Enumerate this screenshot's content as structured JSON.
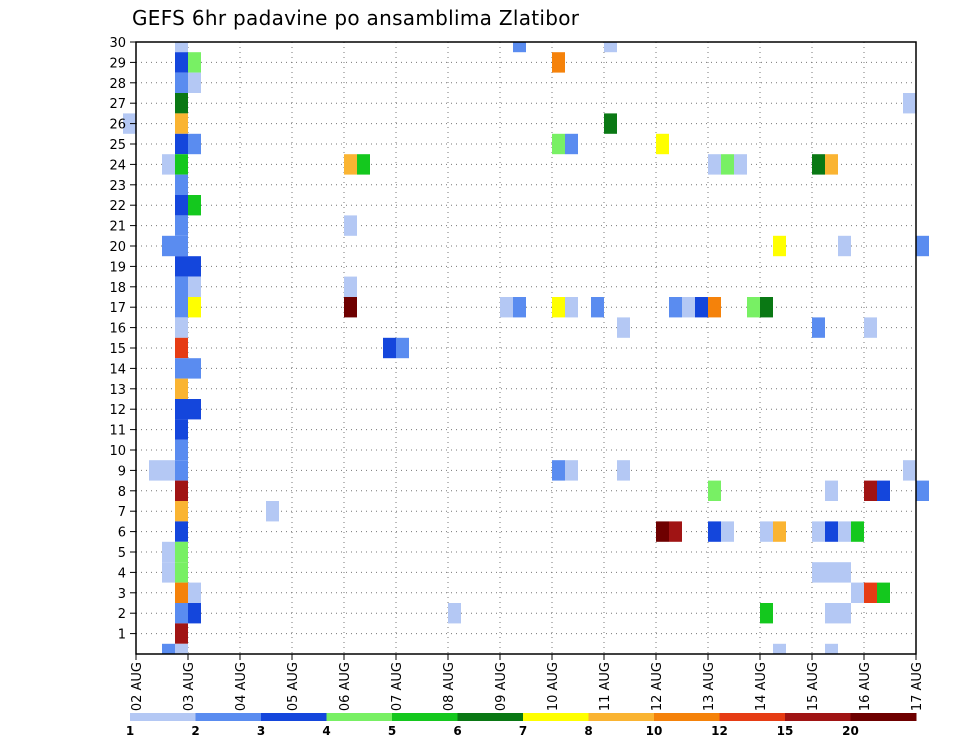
{
  "chart_data": {
    "type": "heatmap",
    "title": "GEFS 6hr padavine po ansamblima Zlatibor",
    "xlabel": "",
    "ylabel": "",
    "x_tick_labels": [
      "02 AUG",
      "03 AUG",
      "04 AUG",
      "05 AUG",
      "06 AUG",
      "07 AUG",
      "08 AUG",
      "09 AUG",
      "10 AUG",
      "11 AUG",
      "12 AUG",
      "13 AUG",
      "14 AUG",
      "15 AUG",
      "16 AUG",
      "17 AUG"
    ],
    "y_tick_labels": [
      "1",
      "2",
      "3",
      "4",
      "5",
      "6",
      "7",
      "8",
      "9",
      "10",
      "11",
      "12",
      "13",
      "14",
      "15",
      "16",
      "17",
      "18",
      "19",
      "20",
      "21",
      "22",
      "23",
      "24",
      "25",
      "26",
      "27",
      "28",
      "29",
      "30"
    ],
    "y_range": [
      0,
      30
    ],
    "x_range_days": [
      2,
      17
    ],
    "grid": true,
    "colorbar": {
      "labels": [
        "1",
        "2",
        "3",
        "4",
        "5",
        "6",
        "7",
        "8",
        "10",
        "12",
        "15",
        "20"
      ],
      "colors": [
        "#b4c8f4",
        "#5a8cf0",
        "#1446dc",
        "#78f064",
        "#14c81e",
        "#0a7814",
        "#ffff00",
        "#fab432",
        "#f5820a",
        "#e63c14",
        "#a01414",
        "#6e0000"
      ]
    },
    "cells": [
      {
        "member": 30,
        "t": 2.75,
        "level": 1
      },
      {
        "member": 30,
        "t": 9.25,
        "level": 2
      },
      {
        "member": 30,
        "t": 11,
        "level": 1
      },
      {
        "member": 29,
        "t": 2.75,
        "level": 3
      },
      {
        "member": 29,
        "t": 3,
        "level": 4
      },
      {
        "member": 29,
        "t": 10,
        "level": 10
      },
      {
        "member": 28,
        "t": 2.75,
        "level": 2
      },
      {
        "member": 28,
        "t": 3,
        "level": 1
      },
      {
        "member": 27,
        "t": 2.75,
        "level": 6
      },
      {
        "member": 27,
        "t": 16.75,
        "level": 1
      },
      {
        "member": 26,
        "t": 1.75,
        "level": 1
      },
      {
        "member": 26,
        "t": 2.75,
        "level": 8
      },
      {
        "member": 26,
        "t": 11,
        "level": 6
      },
      {
        "member": 25,
        "t": 2.75,
        "level": 3
      },
      {
        "member": 25,
        "t": 3,
        "level": 2
      },
      {
        "member": 25,
        "t": 10,
        "level": 4
      },
      {
        "member": 25,
        "t": 10.25,
        "level": 2
      },
      {
        "member": 25,
        "t": 12,
        "level": 7
      },
      {
        "member": 24,
        "t": 2.5,
        "level": 1
      },
      {
        "member": 24,
        "t": 2.75,
        "level": 5
      },
      {
        "member": 24,
        "t": 6,
        "level": 8
      },
      {
        "member": 24,
        "t": 6.25,
        "level": 5
      },
      {
        "member": 24,
        "t": 13,
        "level": 1
      },
      {
        "member": 24,
        "t": 13.25,
        "level": 4
      },
      {
        "member": 24,
        "t": 13.5,
        "level": 1
      },
      {
        "member": 24,
        "t": 15,
        "level": 6
      },
      {
        "member": 24,
        "t": 15.25,
        "level": 8
      },
      {
        "member": 23,
        "t": 2.75,
        "level": 2
      },
      {
        "member": 22,
        "t": 2.75,
        "level": 3
      },
      {
        "member": 22,
        "t": 3,
        "level": 5
      },
      {
        "member": 21,
        "t": 2.75,
        "level": 2
      },
      {
        "member": 21,
        "t": 6,
        "level": 1
      },
      {
        "member": 20,
        "t": 2.5,
        "level": 2
      },
      {
        "member": 20,
        "t": 2.75,
        "level": 2
      },
      {
        "member": 20,
        "t": 14.25,
        "level": 7
      },
      {
        "member": 20,
        "t": 15.5,
        "level": 1
      },
      {
        "member": 20,
        "t": 17,
        "level": 2
      },
      {
        "member": 19,
        "t": 2.75,
        "level": 3
      },
      {
        "member": 19,
        "t": 3,
        "level": 3
      },
      {
        "member": 18,
        "t": 2.75,
        "level": 2
      },
      {
        "member": 18,
        "t": 3,
        "level": 1
      },
      {
        "member": 18,
        "t": 6,
        "level": 1
      },
      {
        "member": 17,
        "t": 2.75,
        "level": 2
      },
      {
        "member": 17,
        "t": 3,
        "level": 7
      },
      {
        "member": 17,
        "t": 6,
        "level": 20
      },
      {
        "member": 17,
        "t": 9,
        "level": 1
      },
      {
        "member": 17,
        "t": 9.25,
        "level": 2
      },
      {
        "member": 17,
        "t": 10,
        "level": 7
      },
      {
        "member": 17,
        "t": 10.25,
        "level": 1
      },
      {
        "member": 17,
        "t": 10.75,
        "level": 2
      },
      {
        "member": 17,
        "t": 12.25,
        "level": 2
      },
      {
        "member": 17,
        "t": 12.5,
        "level": 1
      },
      {
        "member": 17,
        "t": 12.75,
        "level": 3
      },
      {
        "member": 17,
        "t": 13,
        "level": 10
      },
      {
        "member": 17,
        "t": 13.75,
        "level": 4
      },
      {
        "member": 17,
        "t": 14,
        "level": 6
      },
      {
        "member": 16,
        "t": 2.75,
        "level": 1
      },
      {
        "member": 16,
        "t": 11.25,
        "level": 1
      },
      {
        "member": 16,
        "t": 15,
        "level": 2
      },
      {
        "member": 16,
        "t": 16,
        "level": 1
      },
      {
        "member": 15,
        "t": 2.75,
        "level": 12
      },
      {
        "member": 15,
        "t": 6.75,
        "level": 3
      },
      {
        "member": 15,
        "t": 7,
        "level": 2
      },
      {
        "member": 14,
        "t": 2.75,
        "level": 2
      },
      {
        "member": 14,
        "t": 3,
        "level": 2
      },
      {
        "member": 13,
        "t": 2.75,
        "level": 8
      },
      {
        "member": 12,
        "t": 2.75,
        "level": 3
      },
      {
        "member": 12,
        "t": 3,
        "level": 3
      },
      {
        "member": 11,
        "t": 2.75,
        "level": 3
      },
      {
        "member": 10,
        "t": 2.75,
        "level": 2
      },
      {
        "member": 9,
        "t": 2.25,
        "level": 1
      },
      {
        "member": 9,
        "t": 2.5,
        "level": 1
      },
      {
        "member": 9,
        "t": 2.75,
        "level": 2
      },
      {
        "member": 9,
        "t": 10,
        "level": 2
      },
      {
        "member": 9,
        "t": 10.25,
        "level": 1
      },
      {
        "member": 9,
        "t": 11.25,
        "level": 1
      },
      {
        "member": 9,
        "t": 16.75,
        "level": 1
      },
      {
        "member": 8,
        "t": 2.75,
        "level": 15
      },
      {
        "member": 8,
        "t": 13,
        "level": 4
      },
      {
        "member": 8,
        "t": 15.25,
        "level": 1
      },
      {
        "member": 8,
        "t": 16,
        "level": 15
      },
      {
        "member": 8,
        "t": 16.25,
        "level": 3
      },
      {
        "member": 8,
        "t": 17,
        "level": 2
      },
      {
        "member": 7,
        "t": 2.75,
        "level": 8
      },
      {
        "member": 7,
        "t": 4.5,
        "level": 1
      },
      {
        "member": 6,
        "t": 2.75,
        "level": 3
      },
      {
        "member": 6,
        "t": 12,
        "level": 20
      },
      {
        "member": 6,
        "t": 12.25,
        "level": 15
      },
      {
        "member": 6,
        "t": 13,
        "level": 3
      },
      {
        "member": 6,
        "t": 13.25,
        "level": 1
      },
      {
        "member": 6,
        "t": 14,
        "level": 1
      },
      {
        "member": 6,
        "t": 14.25,
        "level": 8
      },
      {
        "member": 6,
        "t": 15,
        "level": 1
      },
      {
        "member": 6,
        "t": 15.25,
        "level": 3
      },
      {
        "member": 6,
        "t": 15.5,
        "level": 1
      },
      {
        "member": 6,
        "t": 15.75,
        "level": 5
      },
      {
        "member": 5,
        "t": 2.5,
        "level": 1
      },
      {
        "member": 5,
        "t": 2.75,
        "level": 4
      },
      {
        "member": 4,
        "t": 2.5,
        "level": 1
      },
      {
        "member": 4,
        "t": 2.75,
        "level": 4
      },
      {
        "member": 4,
        "t": 15,
        "level": 1
      },
      {
        "member": 4,
        "t": 15.25,
        "level": 1
      },
      {
        "member": 4,
        "t": 15.5,
        "level": 1
      },
      {
        "member": 3,
        "t": 2.75,
        "level": 10
      },
      {
        "member": 3,
        "t": 3,
        "level": 1
      },
      {
        "member": 3,
        "t": 15.75,
        "level": 1
      },
      {
        "member": 3,
        "t": 16,
        "level": 12
      },
      {
        "member": 3,
        "t": 16.25,
        "level": 5
      },
      {
        "member": 2,
        "t": 2.75,
        "level": 2
      },
      {
        "member": 2,
        "t": 3,
        "level": 3
      },
      {
        "member": 2,
        "t": 8,
        "level": 1
      },
      {
        "member": 2,
        "t": 14,
        "level": 5
      },
      {
        "member": 2,
        "t": 15.25,
        "level": 1
      },
      {
        "member": 2,
        "t": 15.5,
        "level": 1
      },
      {
        "member": 1,
        "t": 2.75,
        "level": 15
      },
      {
        "member": 0,
        "t": 2.5,
        "level": 2
      },
      {
        "member": 0,
        "t": 2.75,
        "level": 1
      },
      {
        "member": 0,
        "t": 14.25,
        "level": 1
      },
      {
        "member": 0,
        "t": 15.25,
        "level": 1
      }
    ]
  }
}
